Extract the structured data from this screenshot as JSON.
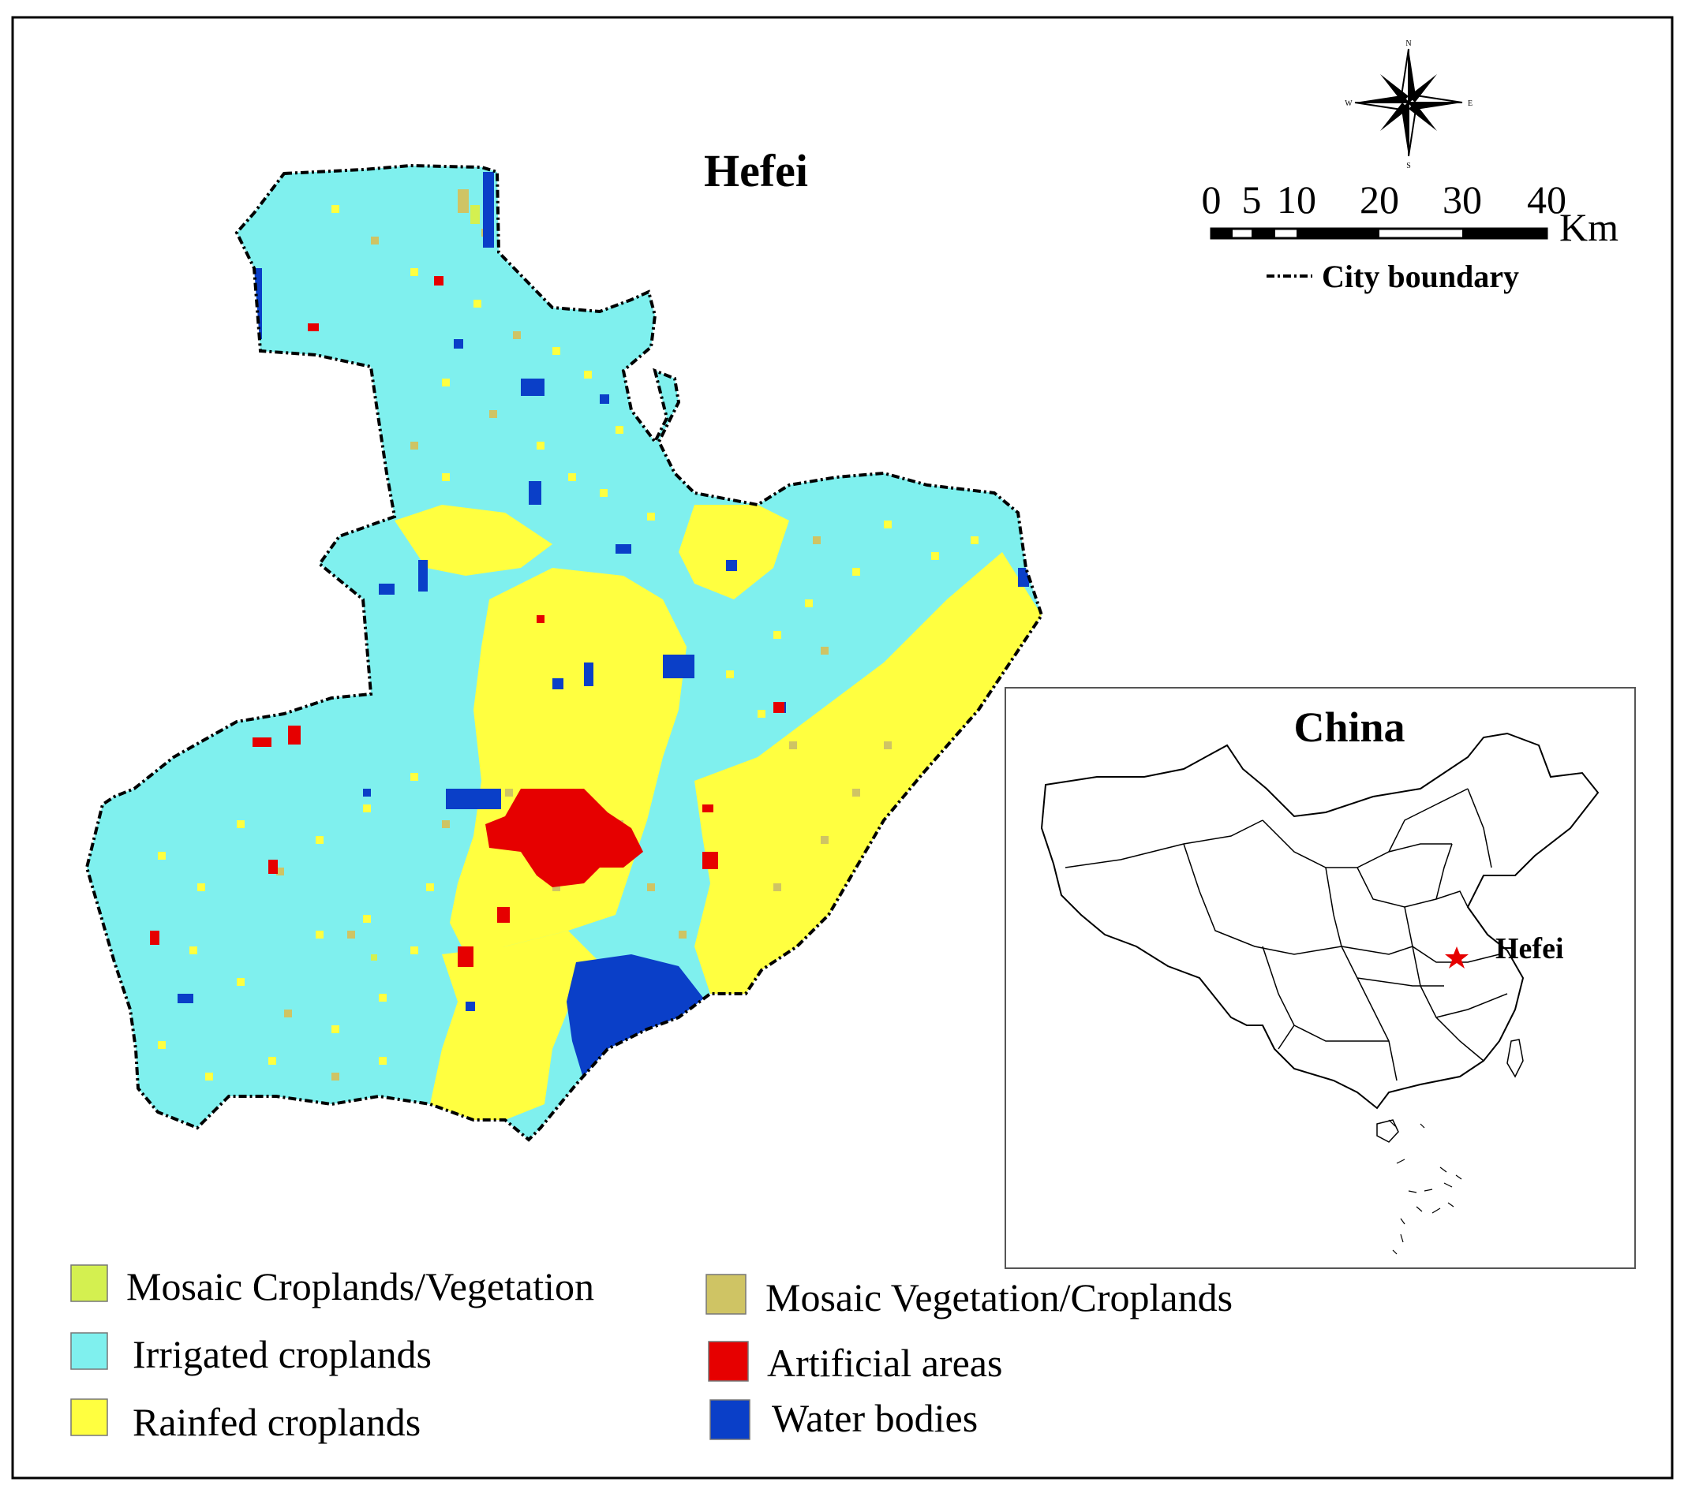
{
  "map": {
    "title": "Hefei",
    "colors": {
      "irrigated": "#7ff0ee",
      "rainfed": "#ffff40",
      "mosaic_crop_veg": "#d4f050",
      "mosaic_veg_crop": "#cfc464",
      "artificial": "#e60000",
      "water": "#0a3fc8"
    }
  },
  "compass": {
    "north": "N",
    "south": "S",
    "east": "E",
    "west": "W"
  },
  "scale_bar": {
    "ticks": [
      "0",
      "5",
      "10",
      "20",
      "30",
      "40"
    ],
    "unit": "Km"
  },
  "boundary_legend": {
    "label": "City boundary"
  },
  "legend": [
    {
      "key": "mosaic_crop_veg",
      "label": "Mosaic Croplands/Vegetation",
      "color": "#d4f050"
    },
    {
      "key": "irrigated",
      "label": "Irrigated croplands",
      "color": "#7ff0ee"
    },
    {
      "key": "rainfed",
      "label": "Rainfed croplands",
      "color": "#ffff40"
    },
    {
      "key": "mosaic_veg_crop",
      "label": "Mosaic Vegetation/Croplands",
      "color": "#cfc464"
    },
    {
      "key": "artificial",
      "label": "Artificial areas",
      "color": "#e60000"
    },
    {
      "key": "water",
      "label": "Water bodies",
      "color": "#0a3fc8"
    }
  ],
  "inset": {
    "title": "China",
    "marker_label": "Hefei",
    "marker_color": "#e60000"
  }
}
